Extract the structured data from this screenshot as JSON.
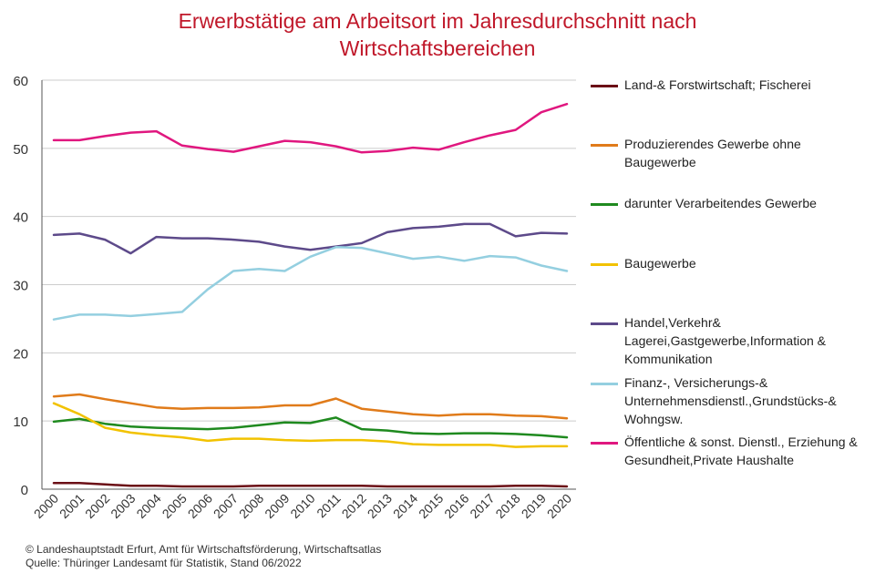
{
  "title_lines": [
    "Erwerbstätige am Arbeitsort im Jahresdurchschnitt nach",
    "Wirtschaftsbereichen"
  ],
  "footer": {
    "line1": "© Landeshauptstadt Erfurt, Amt für Wirtschaftsförderung, Wirtschaftsatlas",
    "line2": "Quelle: Thüringer Landesamt für Statistik, Stand 06/2022"
  },
  "colors": {
    "title": "#c0182a",
    "grid": "#cccccc",
    "axis": "#555555"
  },
  "chart_data": {
    "type": "line",
    "title": "Erwerbstätige am Arbeitsort im Jahresdurchschnitt nach Wirtschaftsbereichen",
    "xlabel": "",
    "ylabel": "",
    "ylim": [
      0,
      60
    ],
    "yticks": [
      "0",
      "10",
      "20",
      "30",
      "40",
      "50",
      "60"
    ],
    "grid": true,
    "legend_position": "right",
    "x": [
      "2000",
      "2001",
      "2002",
      "2003",
      "2004",
      "2005",
      "2006",
      "2007",
      "2008",
      "2009",
      "2010",
      "2011",
      "2012",
      "2013",
      "2014",
      "2015",
      "2016",
      "2017",
      "2018",
      "2019",
      "2020"
    ],
    "series": [
      {
        "name": "Land-& Forstwirtschaft; Fischerei",
        "color": "#6b0f16",
        "values": [
          0.9,
          0.9,
          0.7,
          0.5,
          0.5,
          0.4,
          0.4,
          0.4,
          0.5,
          0.5,
          0.5,
          0.5,
          0.5,
          0.4,
          0.4,
          0.4,
          0.4,
          0.4,
          0.5,
          0.5,
          0.4
        ]
      },
      {
        "name": "Produzierendes Gewerbe ohne Baugewerbe",
        "color": "#e07b1a",
        "values": [
          13.6,
          13.9,
          13.2,
          12.6,
          12.0,
          11.8,
          11.9,
          11.9,
          12.0,
          12.3,
          12.3,
          13.3,
          11.8,
          11.4,
          11.0,
          10.8,
          11.0,
          11.0,
          10.8,
          10.7,
          10.4
        ]
      },
      {
        "name": "darunter Verarbeitendes Gewerbe",
        "color": "#1f8a1f",
        "values": [
          9.9,
          10.3,
          9.6,
          9.2,
          9.0,
          8.9,
          8.8,
          9.0,
          9.4,
          9.8,
          9.7,
          10.5,
          8.8,
          8.6,
          8.2,
          8.1,
          8.2,
          8.2,
          8.1,
          7.9,
          7.6
        ]
      },
      {
        "name": "Baugewerbe",
        "color": "#f2c200",
        "values": [
          12.6,
          11.0,
          9.0,
          8.3,
          7.9,
          7.6,
          7.1,
          7.4,
          7.4,
          7.2,
          7.1,
          7.2,
          7.2,
          7.0,
          6.6,
          6.5,
          6.5,
          6.5,
          6.2,
          6.3,
          6.3
        ]
      },
      {
        "name": "Handel,Verkehr& Lagerei,Gastgewerbe,Information & Kommunikation",
        "color": "#5d4a8a",
        "values": [
          37.3,
          37.5,
          36.6,
          34.6,
          37.0,
          36.8,
          36.8,
          36.6,
          36.3,
          35.6,
          35.1,
          35.6,
          36.1,
          37.7,
          38.3,
          38.5,
          38.9,
          38.9,
          37.1,
          37.6,
          37.5
        ]
      },
      {
        "name": "Finanz-, Versicherungs-& Unternehmensdienstl.,Grundstücks-& Wohngsw.",
        "color": "#94cfe0",
        "values": [
          24.9,
          25.6,
          25.6,
          25.4,
          25.7,
          26.0,
          29.3,
          32.0,
          32.3,
          32.0,
          34.1,
          35.5,
          35.4,
          34.6,
          33.8,
          34.1,
          33.5,
          34.2,
          34.0,
          32.8,
          32.0
        ]
      },
      {
        "name": "Öffentliche & sonst. Dienstl., Erziehung & Gesundheit,Private Haushalte",
        "color": "#e0177f",
        "values": [
          51.2,
          51.2,
          51.8,
          52.3,
          52.5,
          50.4,
          49.9,
          49.5,
          50.3,
          51.1,
          50.9,
          50.3,
          49.4,
          49.6,
          50.1,
          49.8,
          50.9,
          51.9,
          52.7,
          55.3,
          56.5
        ]
      }
    ]
  }
}
